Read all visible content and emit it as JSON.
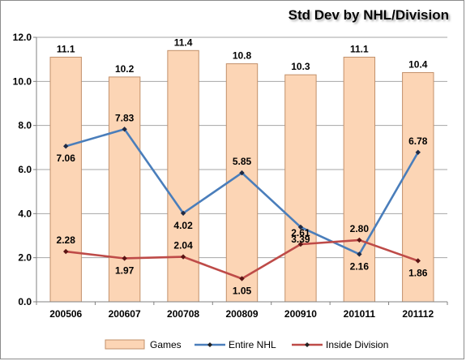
{
  "chart_data": {
    "type": "bar",
    "title": "Std Dev by NHL/Division",
    "categories": [
      "200506",
      "200607",
      "200708",
      "200809",
      "200910",
      "201011",
      "201112"
    ],
    "ylim": [
      0,
      12
    ],
    "yticks": [
      "0.0",
      "2.0",
      "4.0",
      "6.0",
      "8.0",
      "10.0",
      "12.0"
    ],
    "grid": true,
    "legend_position": "bottom",
    "series": [
      {
        "name": "Games",
        "kind": "bar",
        "color": "#fcd5b5",
        "values": [
          11.1,
          10.2,
          11.4,
          10.8,
          10.3,
          11.1,
          10.4
        ],
        "labels": [
          "11.1",
          "10.2",
          "11.4",
          "10.8",
          "10.3",
          "11.1",
          "10.4"
        ]
      },
      {
        "name": "Entire NHL",
        "kind": "line",
        "color": "#4a7ebb",
        "values": [
          7.06,
          7.83,
          4.02,
          5.85,
          3.39,
          2.16,
          6.78
        ],
        "labels": [
          "7.06",
          "7.83",
          "4.02",
          "5.85",
          "3.39",
          "2.16",
          "6.78"
        ]
      },
      {
        "name": "Inside Division",
        "kind": "line",
        "color": "#be4b48",
        "values": [
          2.28,
          1.97,
          2.04,
          1.05,
          2.61,
          2.8,
          1.86
        ],
        "labels": [
          "2.28",
          "1.97",
          "2.04",
          "1.05",
          "2.61",
          "2.80",
          "1.86"
        ]
      }
    ]
  }
}
